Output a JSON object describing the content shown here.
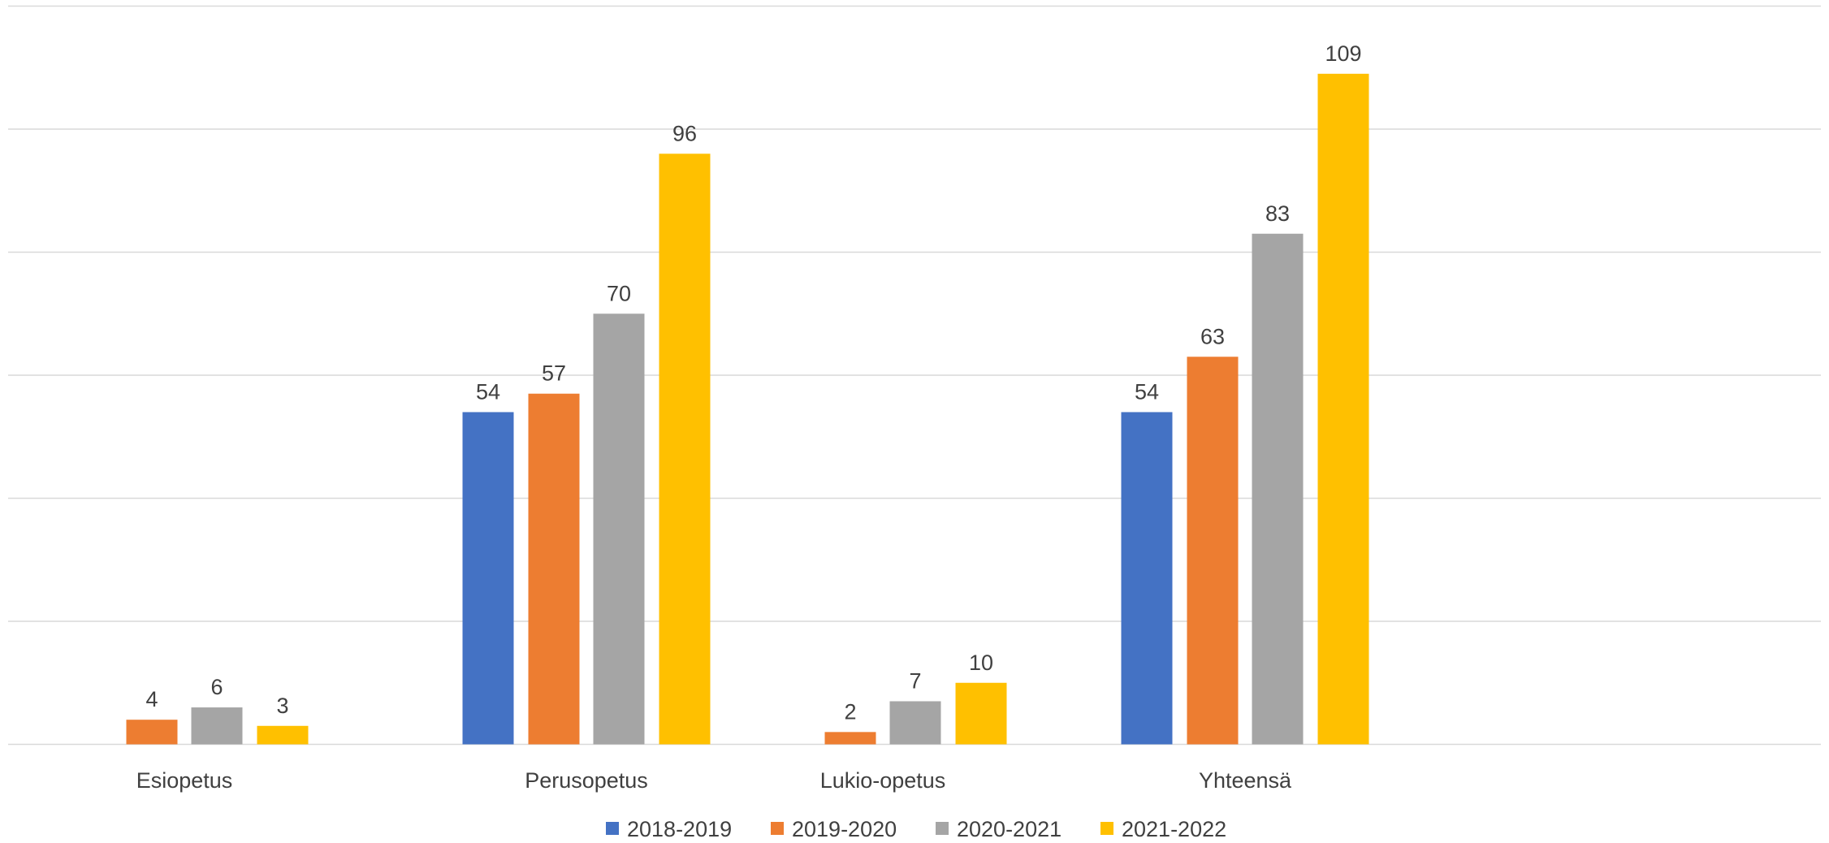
{
  "chart_data": {
    "type": "bar",
    "title": "",
    "xlabel": "",
    "ylabel": "",
    "categories": [
      "Esiopetus",
      "Perusopetus",
      "Lukio-opetus",
      "Yhteensä"
    ],
    "series": [
      {
        "name": "2018-2019",
        "color": "#4472c4",
        "values": [
          null,
          54,
          null,
          54
        ]
      },
      {
        "name": "2019-2020",
        "color": "#ed7d31",
        "values": [
          4,
          57,
          2,
          63
        ]
      },
      {
        "name": "2020-2021",
        "color": "#a5a5a5",
        "values": [
          6,
          70,
          7,
          83
        ]
      },
      {
        "name": "2021-2022",
        "color": "#ffc000",
        "values": [
          3,
          96,
          10,
          109
        ]
      }
    ],
    "ylim": [
      0,
      120
    ],
    "gridlines": [
      0,
      20,
      40,
      60,
      80,
      100,
      120
    ],
    "grid": true,
    "legend_position": "bottom",
    "y_tick_labels_shown": false
  }
}
